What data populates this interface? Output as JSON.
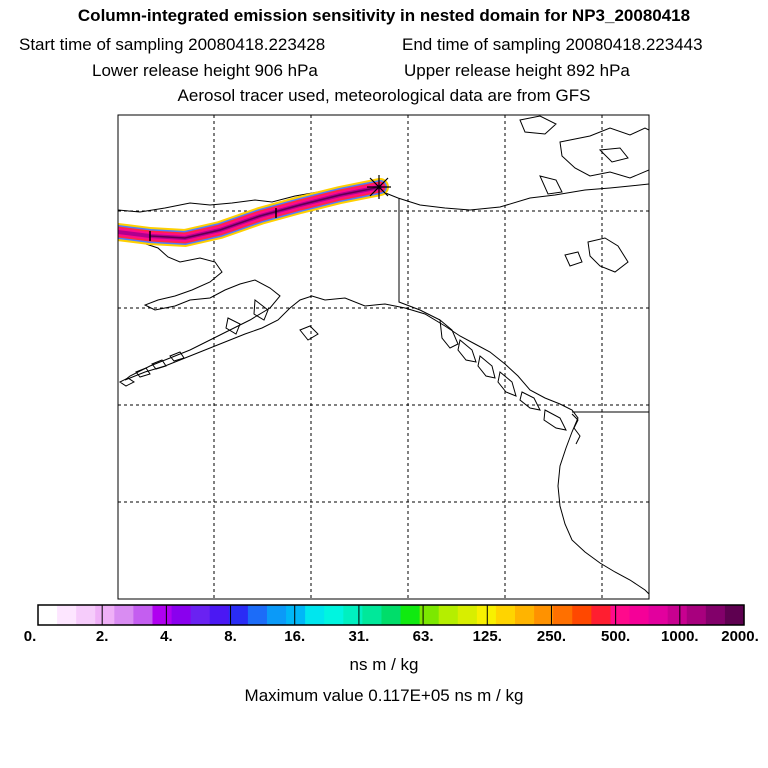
{
  "title": "Column-integrated emission sensitivity in nested domain for NP3_20080418",
  "start_label": "Start time of sampling 20080418.223428",
  "end_label": "End time of sampling 20080418.223443",
  "lower_label": "Lower release height  906 hPa",
  "upper_label": "Upper release height  892 hPa",
  "tracer_label": "Aerosol tracer used, meteorological data are from GFS",
  "colorbar": {
    "colors": [
      "#ffffff",
      "#fde6ff",
      "#f6ccfb",
      "#efb0f7",
      "#d98cf2",
      "#c45ef0",
      "#b000f0",
      "#8a00ee",
      "#6a22f2",
      "#4b18f3",
      "#2a2cf5",
      "#1c6cf8",
      "#0b9af8",
      "#00b7f7",
      "#00e6ee",
      "#00f5e0",
      "#00f0c0",
      "#00e89a",
      "#00dd6a",
      "#10ea10",
      "#7ce800",
      "#b5ee00",
      "#d8ee00",
      "#f8f000",
      "#ffd400",
      "#ffb400",
      "#ff9200",
      "#ff7000",
      "#ff4800",
      "#ff1e30",
      "#ff0a8c",
      "#f50098",
      "#e2009e",
      "#c80090",
      "#a8007e",
      "#82006a",
      "#5e0050"
    ],
    "ticks": [
      "0.",
      "2.",
      "4.",
      "8.",
      "16.",
      "31.",
      "63.",
      "125.",
      "250.",
      "500.",
      "1000.",
      "2000."
    ],
    "units": "ns m / kg"
  },
  "max_label": "Maximum value  0.117E+05 ns m / kg"
}
